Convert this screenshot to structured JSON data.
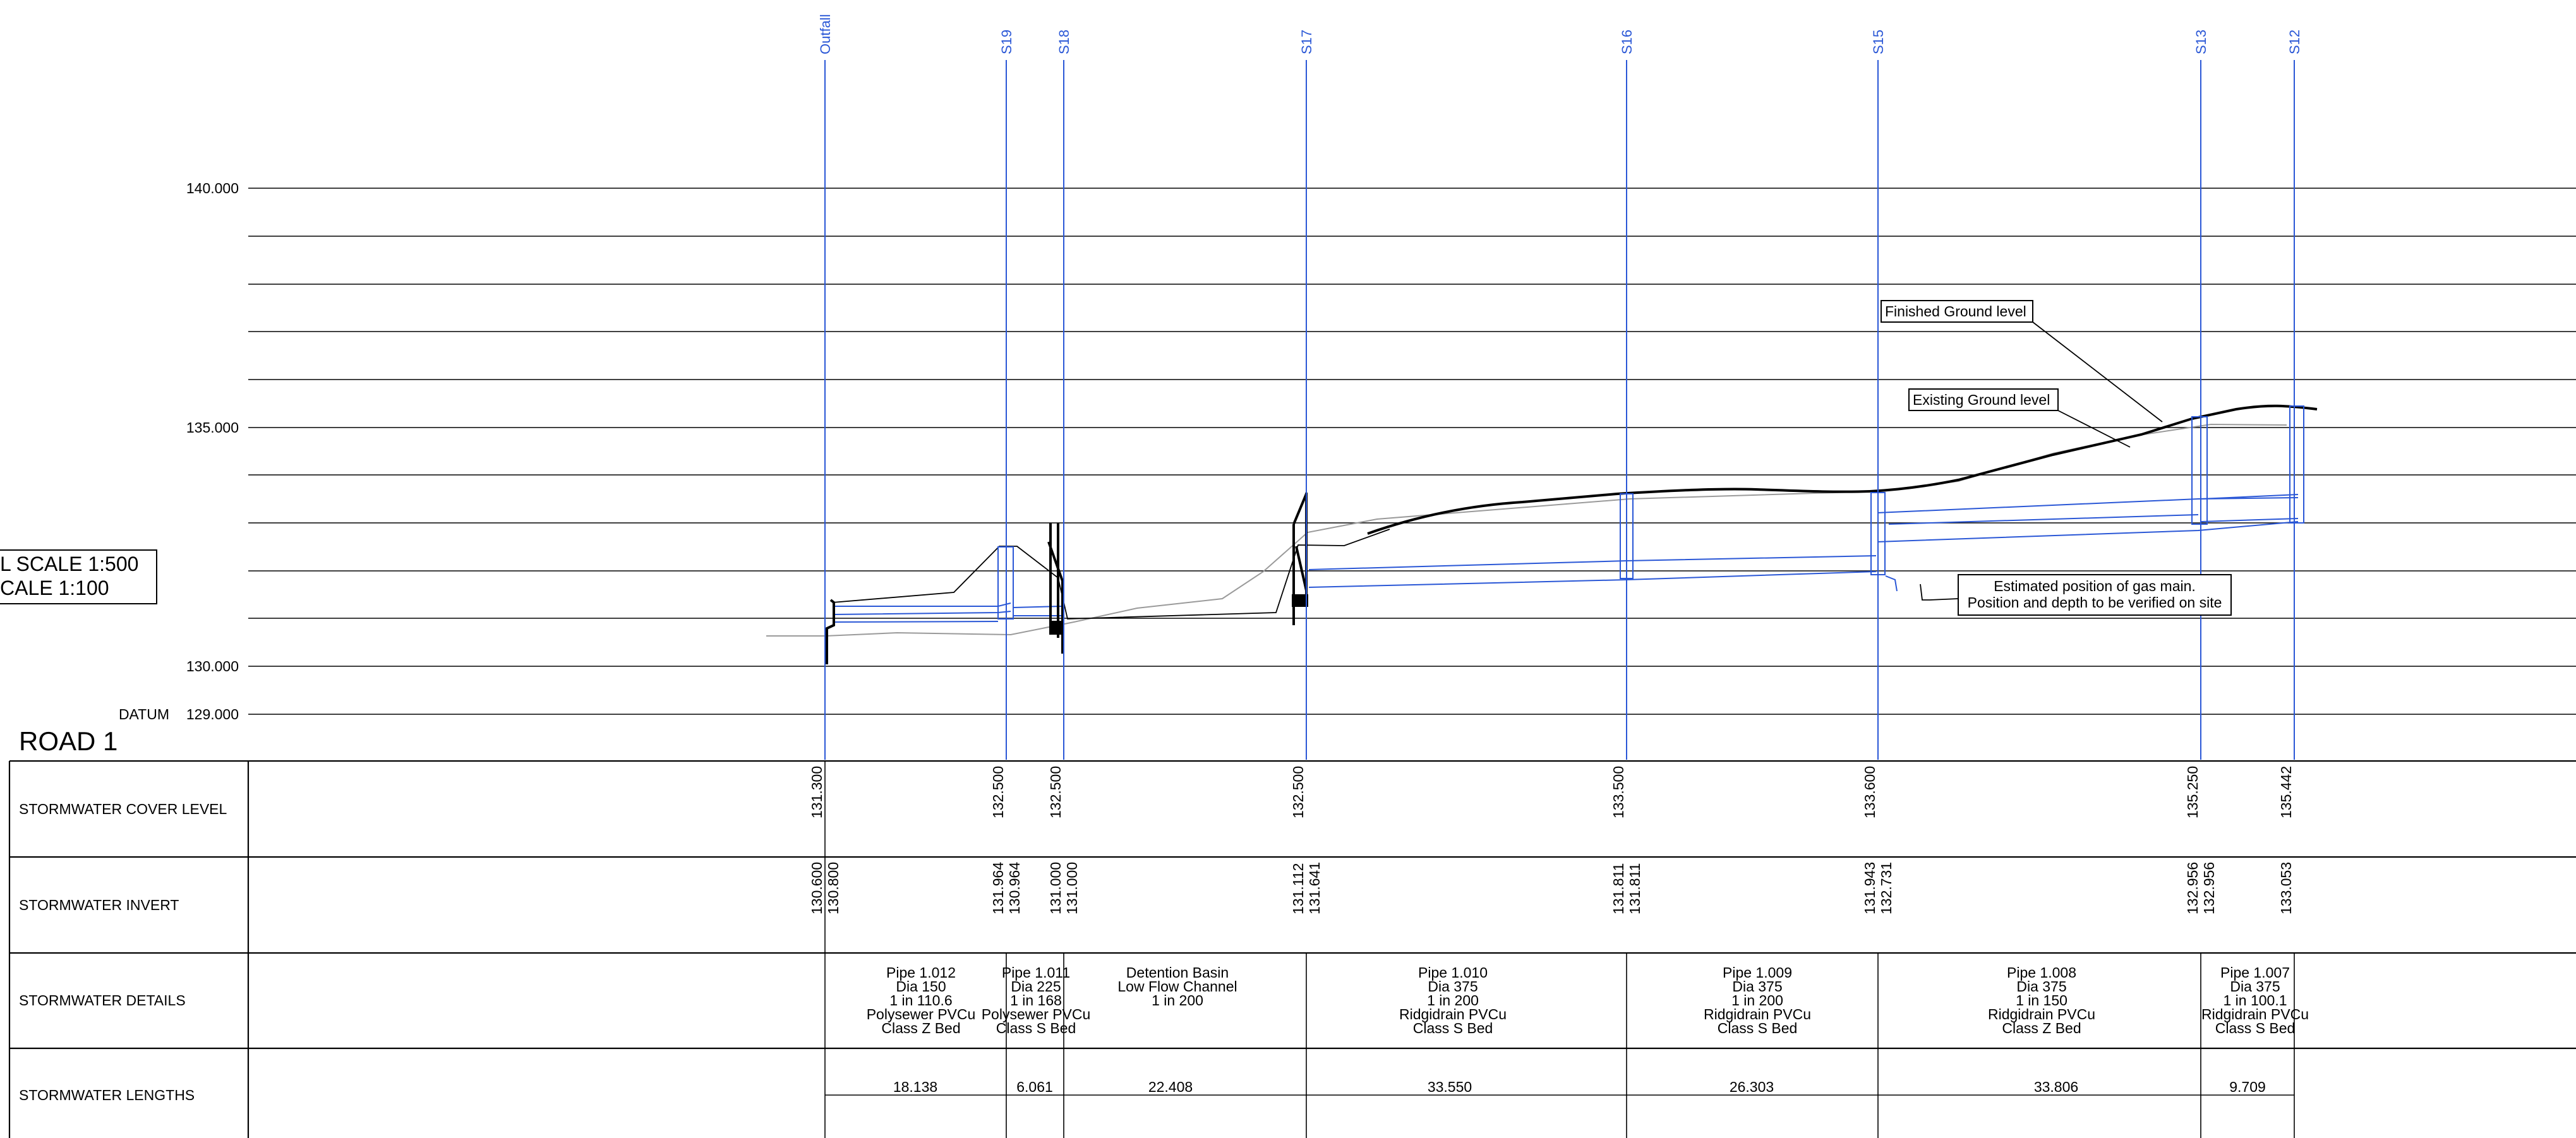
{
  "road_title": "ROAD 1",
  "scale": {
    "line1": "L SCALE 1:500",
    "line2": "CALE 1:100"
  },
  "datum": {
    "label": "DATUM",
    "value": "129.000"
  },
  "levels": {
    "l140": "140.000",
    "l135": "135.000",
    "l130": "130.000"
  },
  "annotations": {
    "finished": "Finished Ground level",
    "existing": "Existing Ground level",
    "gas_line1": "Estimated position of gas main.",
    "gas_line2": "Position and depth to be verified on site"
  },
  "row_labels": {
    "cover": "STORMWATER COVER LEVEL",
    "invert": "STORMWATER INVERT",
    "details": "STORMWATER DETAILS",
    "lengths": "STORMWATER LENGTHS"
  },
  "structures": [
    {
      "id": "Outfall",
      "cover": "131.300",
      "invert_a": "130.600",
      "invert_b": "130.800"
    },
    {
      "id": "S19",
      "cover": "132.500",
      "invert_a": "131.964",
      "invert_b": "130.964"
    },
    {
      "id": "S18",
      "cover": "132.500",
      "invert_a": "131.000",
      "invert_b": "131.000"
    },
    {
      "id": "S17",
      "cover": "132.500",
      "invert_a": "131.112",
      "invert_b": "131.641"
    },
    {
      "id": "S16",
      "cover": "133.500",
      "invert_a": "131.811",
      "invert_b": "131.811"
    },
    {
      "id": "S15",
      "cover": "133.600",
      "invert_a": "131.943",
      "invert_b": "132.731"
    },
    {
      "id": "S13",
      "cover": "135.250",
      "invert_a": "132.956",
      "invert_b": "132.956"
    },
    {
      "id": "S12",
      "cover": "135.442",
      "invert_a": "133.053",
      "invert_b": ""
    }
  ],
  "segments": [
    {
      "details": [
        "Pipe 1.012",
        "Dia 150",
        "1 in 110.6",
        "Polysewer PVCu",
        "Class Z Bed"
      ],
      "length": "18.138"
    },
    {
      "details": [
        "Pipe 1.011",
        "Dia 225",
        "1 in 168",
        "Polysewer PVCu",
        "Class S Bed"
      ],
      "length": "6.061"
    },
    {
      "details": [
        "Detention Basin",
        "Low Flow Channel",
        "1 in 200"
      ],
      "length": "22.408"
    },
    {
      "details": [
        "Pipe 1.010",
        "Dia 375",
        "1 in 200",
        "Ridgidrain PVCu",
        "Class S Bed"
      ],
      "length": "33.550"
    },
    {
      "details": [
        "Pipe 1.009",
        "Dia 375",
        "1 in 200",
        "Ridgidrain PVCu",
        "Class S Bed"
      ],
      "length": "26.303"
    },
    {
      "details": [
        "Pipe 1.008",
        "Dia 375",
        "1 in 150",
        "Ridgidrain PVCu",
        "Class Z Bed"
      ],
      "length": "33.806"
    },
    {
      "details": [
        "Pipe 1.007",
        "Dia 375",
        "1 in 100.1",
        "Ridgidrain PVCu",
        "Class S Bed"
      ],
      "length": "9.709"
    }
  ],
  "colors": {
    "pipe": "#2a57d6",
    "ground_finished": "#000000",
    "ground_existing": "#9a9a9a"
  }
}
